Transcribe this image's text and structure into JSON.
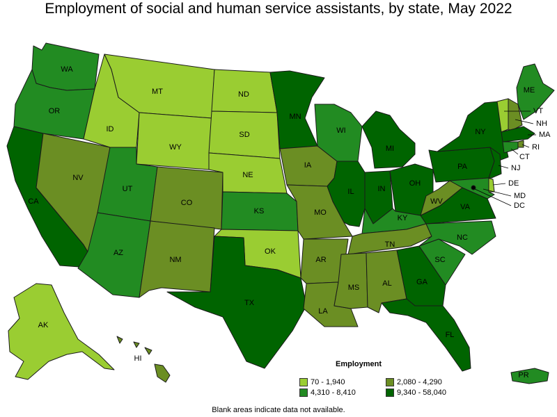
{
  "title": "Employment of social and human service assistants, by state, May 2022",
  "legend": {
    "title": "Employment",
    "bins": [
      {
        "label": "70 - 1,940",
        "color": "#9acd32"
      },
      {
        "label": "2,080 - 4,290",
        "color": "#6b8e23"
      },
      {
        "label": "4,310 - 8,410",
        "color": "#228b22"
      },
      {
        "label": "9,340 - 58,040",
        "color": "#006400"
      }
    ]
  },
  "footnote": "Blank areas indicate data not available.",
  "states": [
    {
      "code": "WA",
      "label": "WA",
      "bin": 2
    },
    {
      "code": "OR",
      "label": "OR",
      "bin": 2
    },
    {
      "code": "CA",
      "label": "CA",
      "bin": 3
    },
    {
      "code": "NV",
      "label": "NV",
      "bin": 1
    },
    {
      "code": "ID",
      "label": "ID",
      "bin": 0
    },
    {
      "code": "MT",
      "label": "MT",
      "bin": 0
    },
    {
      "code": "WY",
      "label": "WY",
      "bin": 0
    },
    {
      "code": "UT",
      "label": "UT",
      "bin": 2
    },
    {
      "code": "AZ",
      "label": "AZ",
      "bin": 2
    },
    {
      "code": "CO",
      "label": "CO",
      "bin": 1
    },
    {
      "code": "NM",
      "label": "NM",
      "bin": 1
    },
    {
      "code": "ND",
      "label": "ND",
      "bin": 0
    },
    {
      "code": "SD",
      "label": "SD",
      "bin": 0
    },
    {
      "code": "NE",
      "label": "NE",
      "bin": 0
    },
    {
      "code": "KS",
      "label": "KS",
      "bin": 2
    },
    {
      "code": "OK",
      "label": "OK",
      "bin": 0
    },
    {
      "code": "TX",
      "label": "TX",
      "bin": 3
    },
    {
      "code": "MN",
      "label": "MN",
      "bin": 3
    },
    {
      "code": "IA",
      "label": "IA",
      "bin": 1
    },
    {
      "code": "MO",
      "label": "MO",
      "bin": 1
    },
    {
      "code": "AR",
      "label": "AR",
      "bin": 1
    },
    {
      "code": "LA",
      "label": "LA",
      "bin": 1
    },
    {
      "code": "WI",
      "label": "WI",
      "bin": 2
    },
    {
      "code": "IL",
      "label": "IL",
      "bin": 3
    },
    {
      "code": "MI",
      "label": "MI",
      "bin": 3
    },
    {
      "code": "IN",
      "label": "IN",
      "bin": 3
    },
    {
      "code": "OH",
      "label": "OH",
      "bin": 3
    },
    {
      "code": "KY",
      "label": "KY",
      "bin": 2
    },
    {
      "code": "TN",
      "label": "TN",
      "bin": 1
    },
    {
      "code": "MS",
      "label": "MS",
      "bin": 1
    },
    {
      "code": "AL",
      "label": "AL",
      "bin": 1
    },
    {
      "code": "GA",
      "label": "GA",
      "bin": 3
    },
    {
      "code": "FL",
      "label": "FL",
      "bin": 3
    },
    {
      "code": "SC",
      "label": "SC",
      "bin": 2
    },
    {
      "code": "NC",
      "label": "NC",
      "bin": 2
    },
    {
      "code": "VA",
      "label": "VA",
      "bin": 3
    },
    {
      "code": "WV",
      "label": "WV",
      "bin": 1
    },
    {
      "code": "PA",
      "label": "PA",
      "bin": 3
    },
    {
      "code": "NY",
      "label": "NY",
      "bin": 3
    },
    {
      "code": "ME",
      "label": "ME",
      "bin": 2
    },
    {
      "code": "VT",
      "label": "VT",
      "bin": 0
    },
    {
      "code": "NH",
      "label": "NH",
      "bin": 1
    },
    {
      "code": "MA",
      "label": "MA",
      "bin": 3
    },
    {
      "code": "RI",
      "label": "RI",
      "bin": 1
    },
    {
      "code": "CT",
      "label": "CT",
      "bin": 2
    },
    {
      "code": "NJ",
      "label": "NJ",
      "bin": 3
    },
    {
      "code": "DE",
      "label": "DE",
      "bin": 0
    },
    {
      "code": "MD",
      "label": "MD",
      "bin": 2
    },
    {
      "code": "DC",
      "label": "DC",
      "bin": 3
    },
    {
      "code": "AK",
      "label": "AK",
      "bin": 0
    },
    {
      "code": "HI",
      "label": "HI",
      "bin": 1
    },
    {
      "code": "PR",
      "label": "PR",
      "bin": 2
    }
  ]
}
